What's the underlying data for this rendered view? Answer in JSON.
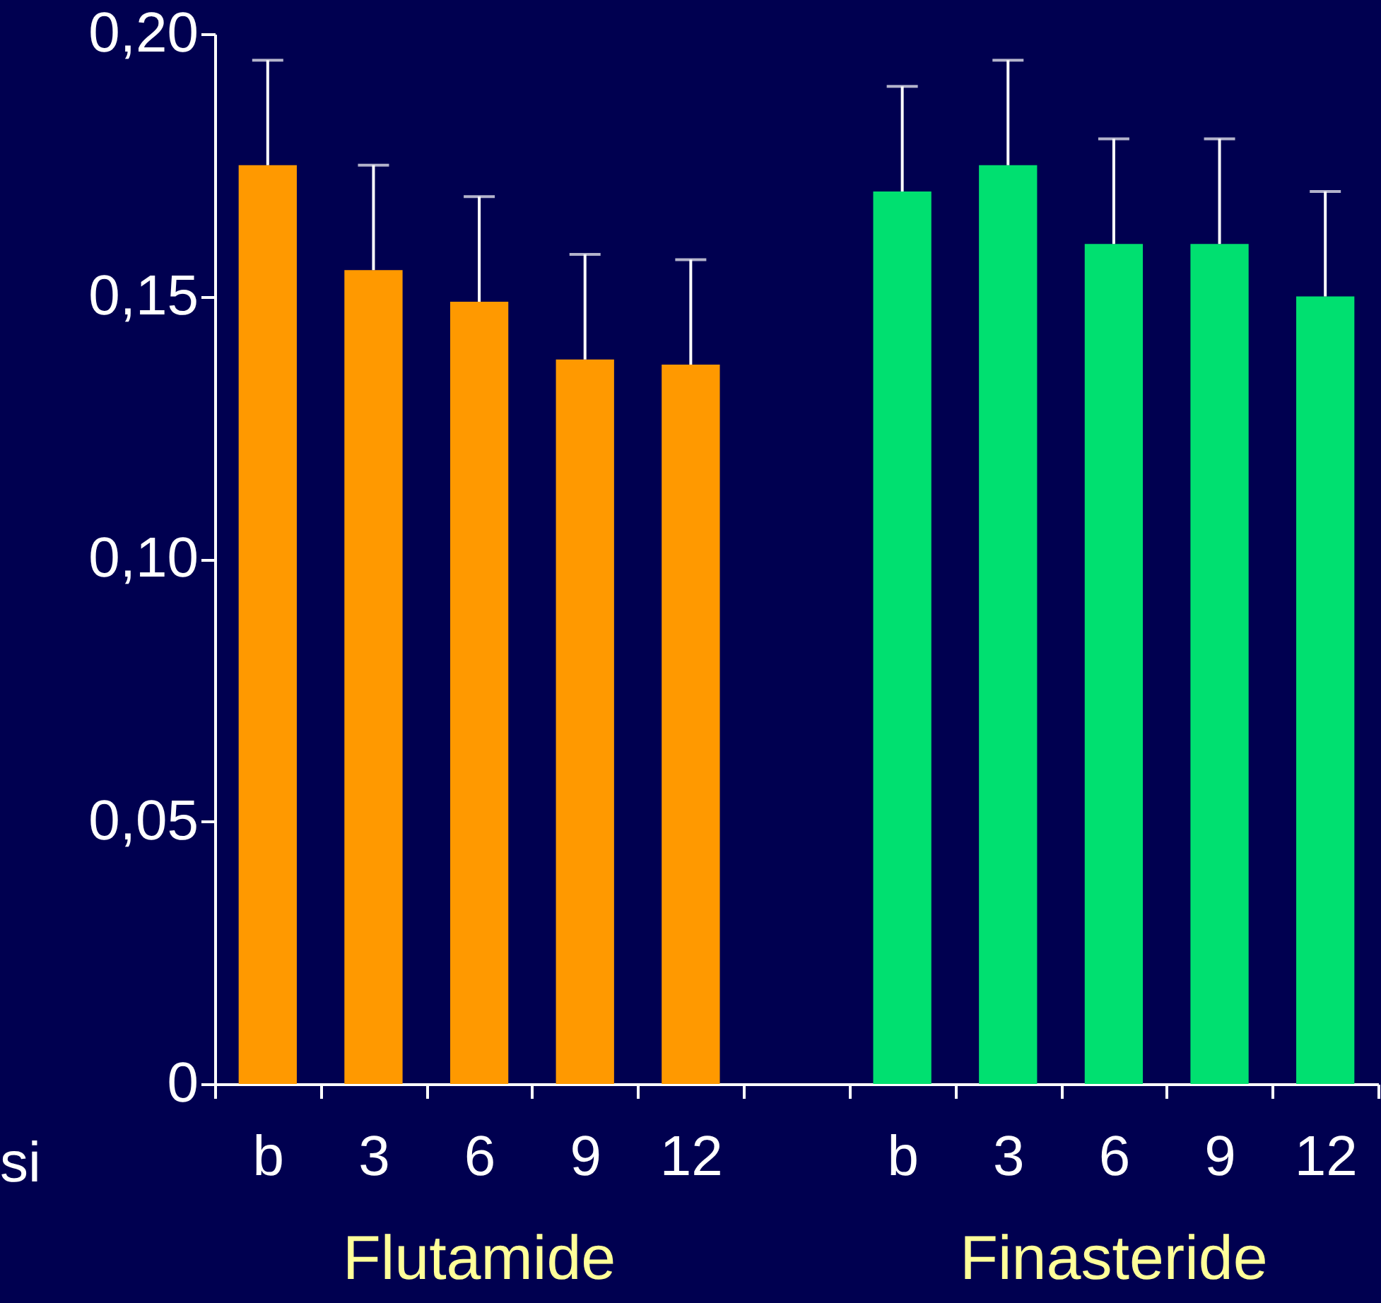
{
  "chart_data": {
    "type": "bar",
    "xlabel": "si",
    "categories": [
      "b",
      "3",
      "6",
      "9",
      "12",
      null,
      "b",
      "3",
      "6",
      "9",
      "12"
    ],
    "values": [
      0.175,
      0.155,
      0.149,
      0.138,
      0.137,
      null,
      0.17,
      0.175,
      0.16,
      0.16,
      0.15
    ],
    "colors": [
      "#ff9900",
      "#ff9900",
      "#ff9900",
      "#ff9900",
      "#ff9900",
      null,
      "#00e070",
      "#00e070",
      "#00e070",
      "#00e070",
      "#00e070"
    ],
    "errors": [
      [
        0.175,
        0.195
      ],
      [
        0.155,
        0.175
      ],
      [
        0.149,
        0.169
      ],
      [
        0.138,
        0.158
      ],
      [
        0.137,
        0.157
      ],
      null,
      [
        0.17,
        0.19
      ],
      [
        0.175,
        0.195
      ],
      [
        0.16,
        0.18
      ],
      [
        0.16,
        0.18
      ],
      [
        0.15,
        0.17
      ]
    ],
    "ylim": [
      0,
      0.2
    ],
    "yticks": [
      {
        "value": 0,
        "label": "0"
      },
      {
        "value": 0.05,
        "label": "0,05"
      },
      {
        "value": 0.1,
        "label": "0,10"
      },
      {
        "value": 0.15,
        "label": "0,15"
      },
      {
        "value": 0.2,
        "label": "0,20"
      }
    ],
    "annotations": [
      "Flutamide",
      "Finasteride"
    ],
    "grid": false
  }
}
